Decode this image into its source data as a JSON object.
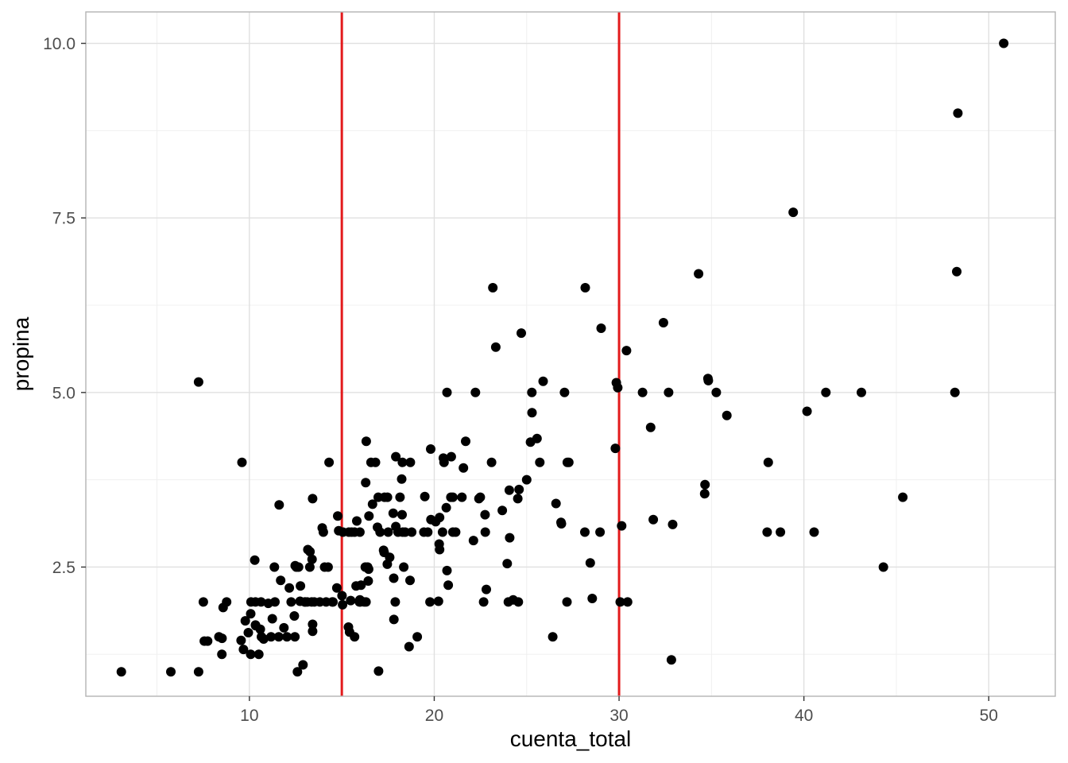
{
  "chart_data": {
    "type": "scatter",
    "title": "",
    "xlabel": "cuenta_total",
    "ylabel": "propina",
    "xlim": [
      1.15,
      53.6
    ],
    "ylim": [
      0.65,
      10.45
    ],
    "x_ticks": [
      10,
      20,
      30,
      40,
      50
    ],
    "y_ticks": [
      2.5,
      5.0,
      7.5,
      10.0
    ],
    "x_tick_labels": [
      "10",
      "20",
      "30",
      "40",
      "50"
    ],
    "y_tick_labels": [
      "2.5",
      "5.0",
      "7.5",
      "10.0"
    ],
    "grid": true,
    "point_color": "#000000",
    "vlines": [
      {
        "x": 15,
        "color": "#e31a1c"
      },
      {
        "x": 30,
        "color": "#e31a1c"
      }
    ],
    "points": [
      [
        3.07,
        1.0
      ],
      [
        5.75,
        1.0
      ],
      [
        7.25,
        1.0
      ],
      [
        7.25,
        5.15
      ],
      [
        7.51,
        2.0
      ],
      [
        7.56,
        1.44
      ],
      [
        7.74,
        1.44
      ],
      [
        8.35,
        1.5
      ],
      [
        8.51,
        1.25
      ],
      [
        8.52,
        1.48
      ],
      [
        8.58,
        1.92
      ],
      [
        8.77,
        2.0
      ],
      [
        9.55,
        1.45
      ],
      [
        9.6,
        4.0
      ],
      [
        9.68,
        1.32
      ],
      [
        9.78,
        1.73
      ],
      [
        9.94,
        1.56
      ],
      [
        10.07,
        1.83
      ],
      [
        10.07,
        1.25
      ],
      [
        10.09,
        2.0
      ],
      [
        10.29,
        2.6
      ],
      [
        10.33,
        1.67
      ],
      [
        10.34,
        1.66
      ],
      [
        10.33,
        2.0
      ],
      [
        10.51,
        1.25
      ],
      [
        10.59,
        1.61
      ],
      [
        10.63,
        2.0
      ],
      [
        10.65,
        1.5
      ],
      [
        10.77,
        1.47
      ],
      [
        11.02,
        1.98
      ],
      [
        11.17,
        1.5
      ],
      [
        11.24,
        1.76
      ],
      [
        11.35,
        2.5
      ],
      [
        11.38,
        2.0
      ],
      [
        11.59,
        1.5
      ],
      [
        11.61,
        3.39
      ],
      [
        11.69,
        2.31
      ],
      [
        11.87,
        1.63
      ],
      [
        12.03,
        1.5
      ],
      [
        12.16,
        2.2
      ],
      [
        12.26,
        2.0
      ],
      [
        12.43,
        1.8
      ],
      [
        12.46,
        1.5
      ],
      [
        12.48,
        2.52
      ],
      [
        12.54,
        2.5
      ],
      [
        12.6,
        1.0
      ],
      [
        12.66,
        2.5
      ],
      [
        12.74,
        2.01
      ],
      [
        12.76,
        2.23
      ],
      [
        12.9,
        1.1
      ],
      [
        13.0,
        2.0
      ],
      [
        13.03,
        2.0
      ],
      [
        13.13,
        2.0
      ],
      [
        13.16,
        2.75
      ],
      [
        13.27,
        2.5
      ],
      [
        13.28,
        2.72
      ],
      [
        13.37,
        2.0
      ],
      [
        13.39,
        2.61
      ],
      [
        13.42,
        1.58
      ],
      [
        13.42,
        1.68
      ],
      [
        13.42,
        3.48
      ],
      [
        13.51,
        2.0
      ],
      [
        13.81,
        2.0
      ],
      [
        13.94,
        3.06
      ],
      [
        14.0,
        3.0
      ],
      [
        14.07,
        2.5
      ],
      [
        14.15,
        2.0
      ],
      [
        14.26,
        2.5
      ],
      [
        14.31,
        4.0
      ],
      [
        14.48,
        2.0
      ],
      [
        14.52,
        2.0
      ],
      [
        14.73,
        2.2
      ],
      [
        14.78,
        3.23
      ],
      [
        14.83,
        3.02
      ],
      [
        15.01,
        2.09
      ],
      [
        15.04,
        1.96
      ],
      [
        15.06,
        3.0
      ],
      [
        15.36,
        1.64
      ],
      [
        15.38,
        3.0
      ],
      [
        15.42,
        1.57
      ],
      [
        15.48,
        2.02
      ],
      [
        15.53,
        3.0
      ],
      [
        15.69,
        1.5
      ],
      [
        15.69,
        3.0
      ],
      [
        15.77,
        2.23
      ],
      [
        15.81,
        3.16
      ],
      [
        15.95,
        2.0
      ],
      [
        15.98,
        2.03
      ],
      [
        15.98,
        3.0
      ],
      [
        16.0,
        2.0
      ],
      [
        16.04,
        2.24
      ],
      [
        16.21,
        2.0
      ],
      [
        16.27,
        2.5
      ],
      [
        16.29,
        3.71
      ],
      [
        16.31,
        2.0
      ],
      [
        16.32,
        4.3
      ],
      [
        16.4,
        2.5
      ],
      [
        16.43,
        2.3
      ],
      [
        16.45,
        2.47
      ],
      [
        16.47,
        3.23
      ],
      [
        16.58,
        4.0
      ],
      [
        16.66,
        3.4
      ],
      [
        16.82,
        4.0
      ],
      [
        16.93,
        3.07
      ],
      [
        16.97,
        3.5
      ],
      [
        16.99,
        1.01
      ],
      [
        17.07,
        3.0
      ],
      [
        17.26,
        2.74
      ],
      [
        17.29,
        2.71
      ],
      [
        17.31,
        3.5
      ],
      [
        17.46,
        2.54
      ],
      [
        17.47,
        3.5
      ],
      [
        17.51,
        3.0
      ],
      [
        17.59,
        2.64
      ],
      [
        17.78,
        3.27
      ],
      [
        17.81,
        2.34
      ],
      [
        17.82,
        1.75
      ],
      [
        17.89,
        2.0
      ],
      [
        17.92,
        3.08
      ],
      [
        17.92,
        4.08
      ],
      [
        18.04,
        3.0
      ],
      [
        18.15,
        3.5
      ],
      [
        18.24,
        3.76
      ],
      [
        18.26,
        3.25
      ],
      [
        18.28,
        4.0
      ],
      [
        18.29,
        3.0
      ],
      [
        18.35,
        2.5
      ],
      [
        18.43,
        3.0
      ],
      [
        18.64,
        1.36
      ],
      [
        18.69,
        2.31
      ],
      [
        18.71,
        4.0
      ],
      [
        18.78,
        3.0
      ],
      [
        19.08,
        1.5
      ],
      [
        19.44,
        3.0
      ],
      [
        19.49,
        3.51
      ],
      [
        19.65,
        3.0
      ],
      [
        19.77,
        2.0
      ],
      [
        19.81,
        4.19
      ],
      [
        19.82,
        3.18
      ],
      [
        20.08,
        3.15
      ],
      [
        20.23,
        2.01
      ],
      [
        20.27,
        2.83
      ],
      [
        20.29,
        2.75
      ],
      [
        20.29,
        3.21
      ],
      [
        20.45,
        3.0
      ],
      [
        20.49,
        4.06
      ],
      [
        20.53,
        4.0
      ],
      [
        20.65,
        3.35
      ],
      [
        20.69,
        2.45
      ],
      [
        20.69,
        5.0
      ],
      [
        20.76,
        2.24
      ],
      [
        20.9,
        3.5
      ],
      [
        20.92,
        4.08
      ],
      [
        21.01,
        3.0
      ],
      [
        21.01,
        3.5
      ],
      [
        21.16,
        3.0
      ],
      [
        21.5,
        3.5
      ],
      [
        21.58,
        3.92
      ],
      [
        21.7,
        4.3
      ],
      [
        22.12,
        2.88
      ],
      [
        22.23,
        5.0
      ],
      [
        22.42,
        3.48
      ],
      [
        22.49,
        3.5
      ],
      [
        22.67,
        2.0
      ],
      [
        22.75,
        3.25
      ],
      [
        22.76,
        3.0
      ],
      [
        22.82,
        2.18
      ],
      [
        23.1,
        4.0
      ],
      [
        23.17,
        6.5
      ],
      [
        23.33,
        5.65
      ],
      [
        23.68,
        3.31
      ],
      [
        23.95,
        2.55
      ],
      [
        24.01,
        2.0
      ],
      [
        24.06,
        3.6
      ],
      [
        24.08,
        2.92
      ],
      [
        24.27,
        2.03
      ],
      [
        24.52,
        3.48
      ],
      [
        24.55,
        2.0
      ],
      [
        24.59,
        3.61
      ],
      [
        24.71,
        5.85
      ],
      [
        25.0,
        3.75
      ],
      [
        25.21,
        4.29
      ],
      [
        25.28,
        5.0
      ],
      [
        25.29,
        4.71
      ],
      [
        25.56,
        4.34
      ],
      [
        25.71,
        4.0
      ],
      [
        25.89,
        5.16
      ],
      [
        26.41,
        1.5
      ],
      [
        26.59,
        3.41
      ],
      [
        26.86,
        3.14
      ],
      [
        26.88,
        3.12
      ],
      [
        27.05,
        5.0
      ],
      [
        27.18,
        2.0
      ],
      [
        27.2,
        4.0
      ],
      [
        27.28,
        4.0
      ],
      [
        28.15,
        3.0
      ],
      [
        28.17,
        6.5
      ],
      [
        28.44,
        2.56
      ],
      [
        28.55,
        2.05
      ],
      [
        28.97,
        3.0
      ],
      [
        29.03,
        5.92
      ],
      [
        29.8,
        4.2
      ],
      [
        29.85,
        5.14
      ],
      [
        29.93,
        5.07
      ],
      [
        30.06,
        2.0
      ],
      [
        30.14,
        3.09
      ],
      [
        30.4,
        5.6
      ],
      [
        30.46,
        2.0
      ],
      [
        31.27,
        5.0
      ],
      [
        31.71,
        4.5
      ],
      [
        31.85,
        3.18
      ],
      [
        32.4,
        6.0
      ],
      [
        32.68,
        5.0
      ],
      [
        32.83,
        1.17
      ],
      [
        32.9,
        3.11
      ],
      [
        34.3,
        6.7
      ],
      [
        34.63,
        3.55
      ],
      [
        34.65,
        3.68
      ],
      [
        34.81,
        5.2
      ],
      [
        34.83,
        5.17
      ],
      [
        35.26,
        5.0
      ],
      [
        35.83,
        4.67
      ],
      [
        38.01,
        3.0
      ],
      [
        38.07,
        4.0
      ],
      [
        38.73,
        3.0
      ],
      [
        39.42,
        7.58
      ],
      [
        40.17,
        4.73
      ],
      [
        40.55,
        3.0
      ],
      [
        41.19,
        5.0
      ],
      [
        43.11,
        5.0
      ],
      [
        44.3,
        2.5
      ],
      [
        45.35,
        3.5
      ],
      [
        48.17,
        5.0
      ],
      [
        48.27,
        6.73
      ],
      [
        48.33,
        9.0
      ],
      [
        50.81,
        10.0
      ]
    ]
  }
}
